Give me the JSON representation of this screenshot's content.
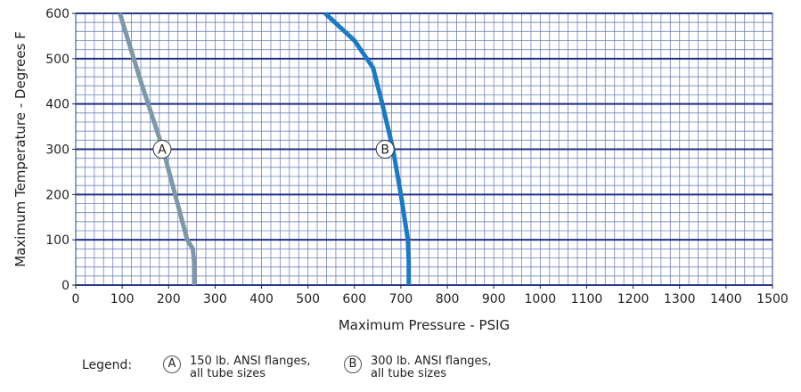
{
  "chart_data": {
    "type": "line",
    "title": "",
    "xlabel": "Maximum Pressure - PSIG",
    "ylabel": "Maximum Temperature - Degrees F",
    "xlim": [
      0,
      1500
    ],
    "ylim": [
      0,
      600
    ],
    "x_ticks": [
      "0",
      "100",
      "200",
      "300",
      "400",
      "500",
      "600",
      "700",
      "800",
      "900",
      "1000",
      "1100",
      "1200",
      "1300",
      "1400",
      "1500"
    ],
    "y_ticks": [
      "0",
      "100",
      "200",
      "300",
      "400",
      "500",
      "600"
    ],
    "grid": true,
    "series": [
      {
        "name": "A",
        "color": "#7f98a8",
        "points": [
          [
            255,
            0
          ],
          [
            255,
            50
          ],
          [
            252,
            80
          ],
          [
            240,
            100
          ],
          [
            188,
            300
          ],
          [
            140,
            450
          ],
          [
            95,
            600
          ]
        ],
        "marker_at": [
          186,
          300
        ]
      },
      {
        "name": "B",
        "color": "#1f79bf",
        "points": [
          [
            717,
            0
          ],
          [
            717,
            50
          ],
          [
            715,
            100
          ],
          [
            700,
            200
          ],
          [
            683,
            300
          ],
          [
            660,
            400
          ],
          [
            640,
            480
          ],
          [
            600,
            540
          ],
          [
            537,
            600
          ]
        ],
        "marker_at": [
          666,
          300
        ]
      }
    ]
  },
  "legend": {
    "title": "Legend:",
    "items": [
      {
        "marker": "A",
        "text": "150 lb. ANSI flanges,\nall tube sizes"
      },
      {
        "marker": "B",
        "text": "300 lb. ANSI flanges,\nall tube sizes"
      }
    ]
  }
}
